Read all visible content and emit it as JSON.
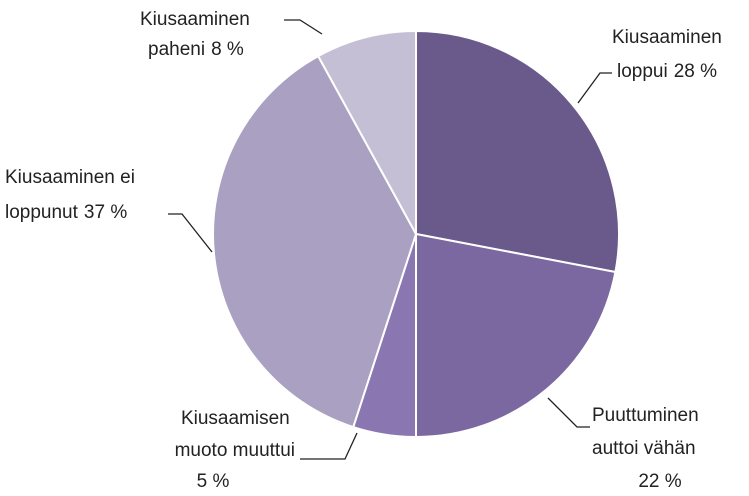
{
  "chart_data": {
    "type": "pie",
    "categories": [
      "Kiusaaminen loppui",
      "Puuttuminen auttoi vähän",
      "Kiusaamisen muoto muuttui",
      "Kiusaaminen ei loppunut",
      "Kiusaaminen paheni"
    ],
    "values": [
      28,
      22,
      5,
      37,
      8
    ],
    "value_labels": [
      "28 %",
      "22 %",
      "5 %",
      "37 %",
      "8 %"
    ],
    "colors": [
      "#6a5a8c",
      "#7b68a0",
      "#8a77b1",
      "#a9a0c2",
      "#c5bfd6"
    ]
  }
}
